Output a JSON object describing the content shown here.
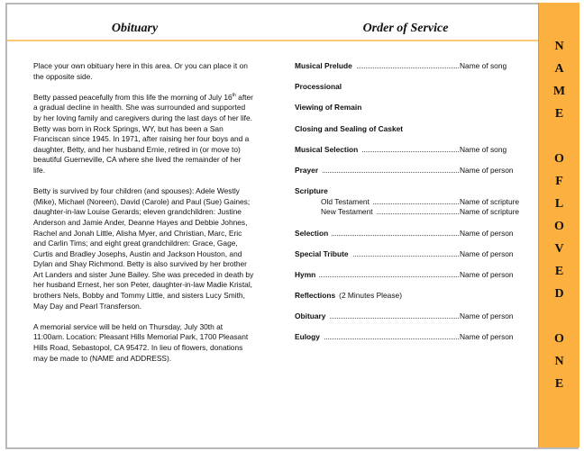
{
  "obituary": {
    "title": "Obituary",
    "paragraphs": [
      "Place your own obituary here in this area. Or you can place it on the opposite side.",
      "Betty passed peacefully from this life the morning of July 16",
      "Betty is survived by four children (and spouses): Adele Westly (Mike), Michael (Noreen), David (Carole) and Paul (Sue) Gaines;  daughter-in-law Louise Gerards;  eleven grandchildren: Justine Anderson and Jamie Ander, Deanne Hayes and Debbie Johnes, Rachel and Jonah Little, Alisha Myer, and Christian, Marc, Eric and Carlin Tims;  and eight great grandchildren: Grace, Gage, Curtis and Bradley Josephs, Austin and Jackson Houston, and Dylan and Shay Richmond.  Betty is also survived by her brother Art Landers and sister June Bailey.  She was preceded in death by her husband Ernest, her son Peter, daughter-in-law Madie Kristal, brothers Nels, Bobby and Tommy Little, and sisters Lucy Smith, May Day and Pearl Transferson.",
      "A memorial service will be held on Thursday, July 30th at 11:00am.  Location:  Pleasant Hills Memorial Park, 1700 Pleasant Hills Road, Sebastopol, CA 95472.  In lieu of flowers, donations may be made to (NAME and ADDRESS)."
    ],
    "p2_sup": "th",
    "p2_rest": " after a gradual decline in health.  She was surrounded and supported by her loving family and caregivers during the last days of her life.  Betty was born in Rock Springs, WY, but has been a San Franciscan since 1945.  In 1971, after raising her four boys and a daughter, Betty, and her husband Ernie, retired in (or move to) beautiful Guerneville, CA where she lived the remainder of her life."
  },
  "service": {
    "title": "Order of Service",
    "items": [
      {
        "label": "Musical Prelude",
        "value": "Name of song"
      },
      {
        "label": "Processional"
      },
      {
        "label": "Viewing of Remain"
      },
      {
        "label": "Closing and Sealing of Casket"
      },
      {
        "label": "Musical Selection",
        "value": "Name of song"
      },
      {
        "label": "Prayer",
        "value": "Name of person"
      },
      {
        "label": "Scripture"
      },
      {
        "label": "Old Testament",
        "value": "Name of scripture"
      },
      {
        "label": "New Testament",
        "value": "Name of scripture"
      },
      {
        "label": "Selection",
        "value": "Name of person"
      },
      {
        "label": "Special Tribute",
        "value": "Name of person"
      },
      {
        "label": "Hymn",
        "value": "Name of person"
      },
      {
        "label": "Reflections",
        "note": "(2 Minutes Please)"
      },
      {
        "label": "Obituary",
        "value": "Name of person"
      },
      {
        "label": "Eulogy",
        "value": "Name of person"
      }
    ]
  },
  "side_banner": {
    "letters": [
      "N",
      "A",
      "M",
      "E",
      "",
      "O",
      "F",
      "L",
      "O",
      "V",
      "E",
      "D",
      "",
      "O",
      "N",
      "E"
    ],
    "color": "#fbb040"
  }
}
